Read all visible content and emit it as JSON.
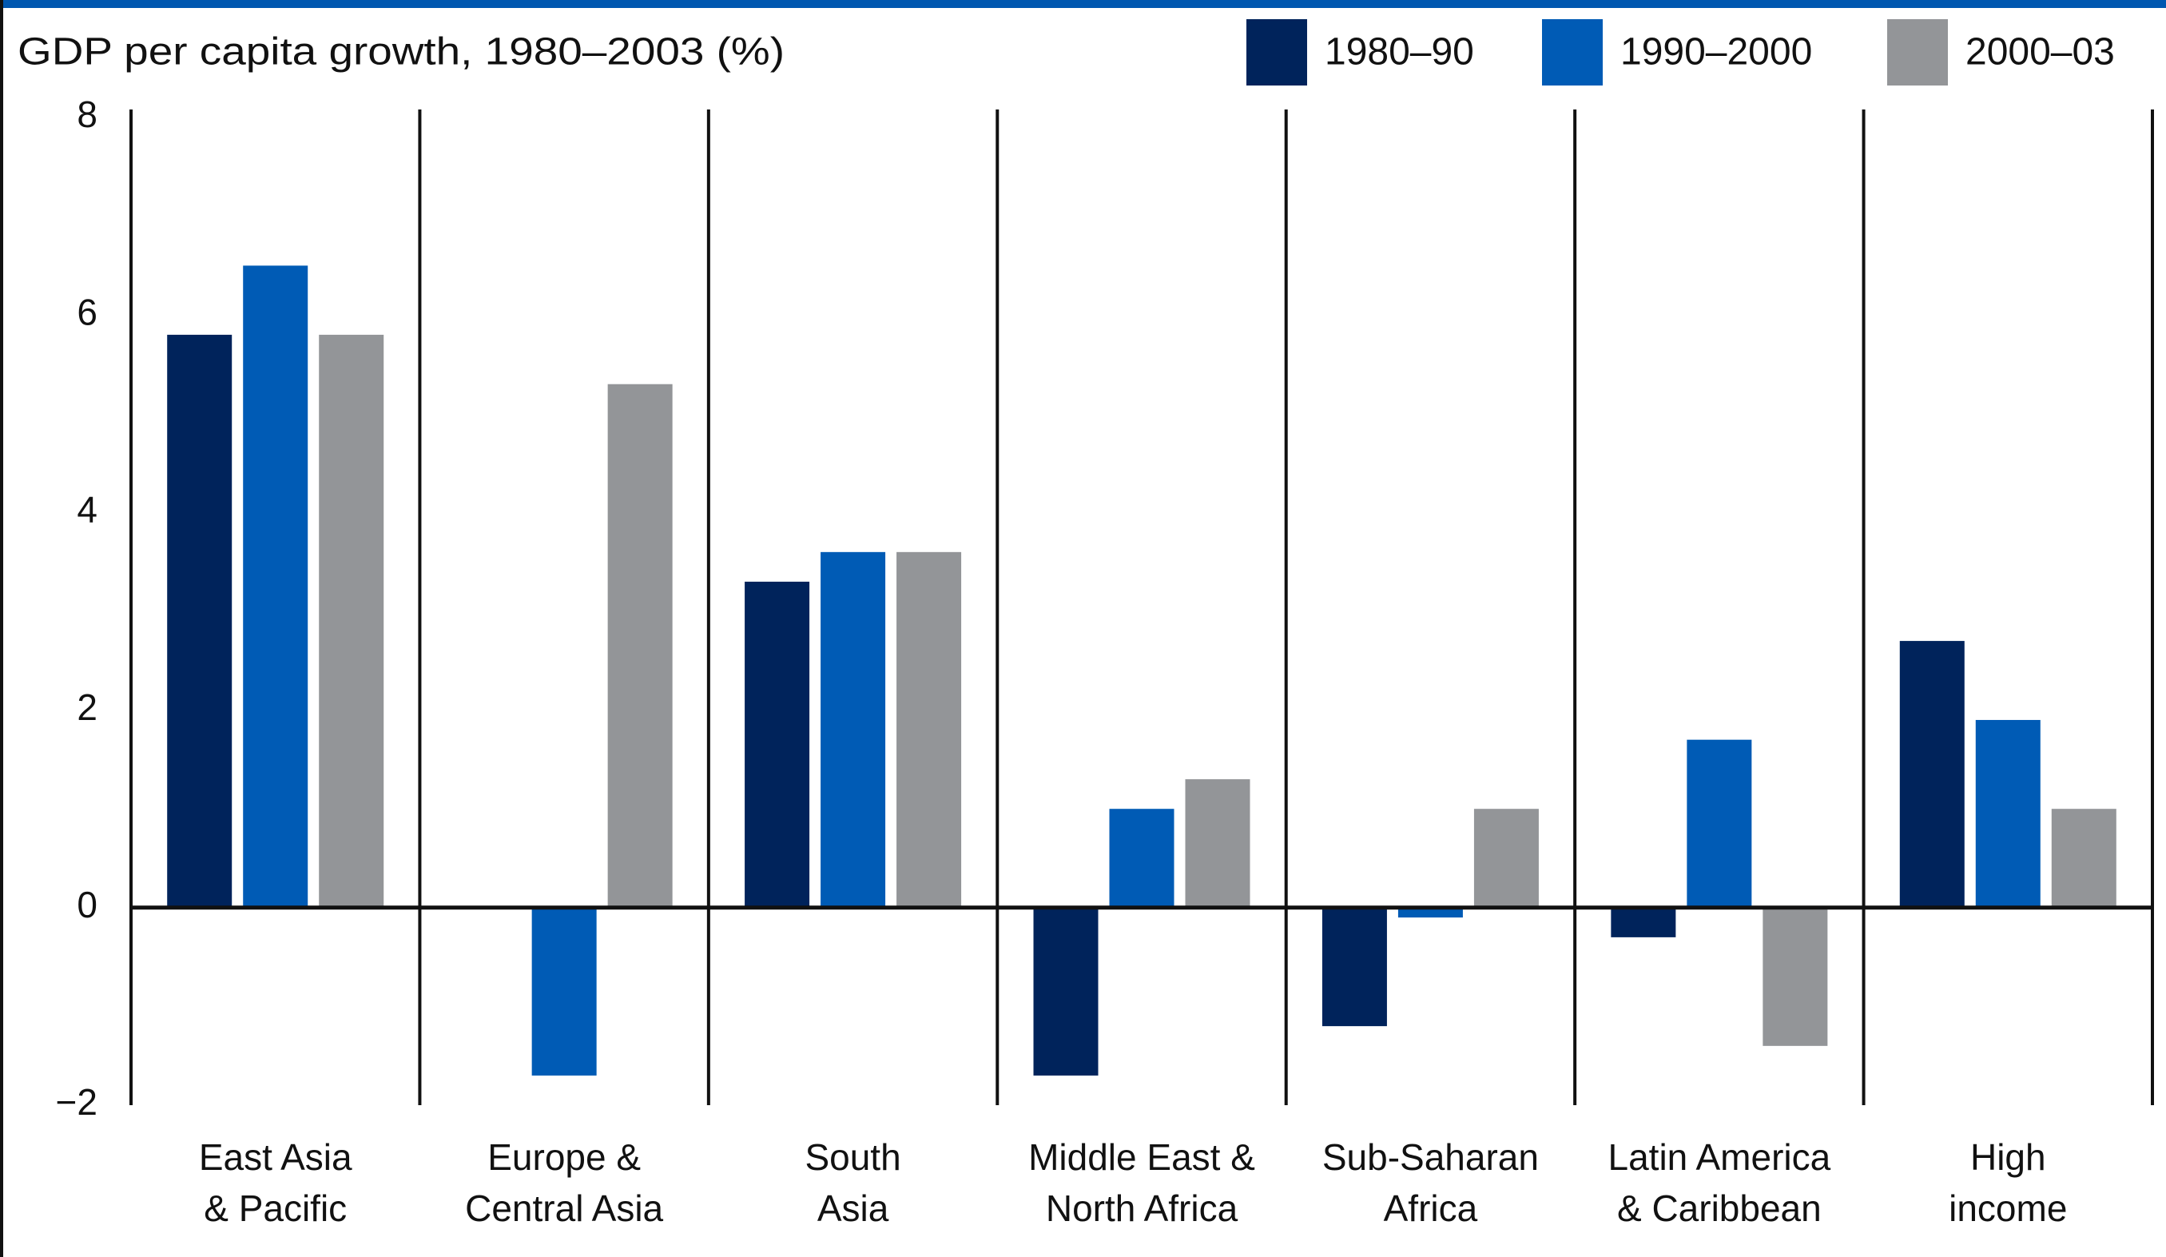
{
  "chart_data": {
    "type": "bar",
    "title": "GDP per capita growth, 1980–2003 (%)",
    "categories": [
      [
        "East Asia",
        "& Pacific"
      ],
      [
        "Europe &",
        "Central Asia"
      ],
      [
        "South",
        "Asia"
      ],
      [
        "Middle East &",
        "North Africa"
      ],
      [
        "Sub-Saharan",
        "Africa"
      ],
      [
        "Latin America",
        "& Caribbean"
      ],
      [
        "High",
        "income"
      ]
    ],
    "series": [
      {
        "name": "1980–90",
        "color": "#00235b",
        "values": [
          5.8,
          null,
          3.3,
          -1.7,
          -1.2,
          -0.3,
          2.7
        ]
      },
      {
        "name": "1990–2000",
        "color": "#005bb5",
        "values": [
          6.5,
          -1.7,
          3.6,
          1.0,
          -0.1,
          1.7,
          1.9
        ]
      },
      {
        "name": "2000–03",
        "color": "#939598",
        "values": [
          5.8,
          5.3,
          3.6,
          1.3,
          1.0,
          -1.4,
          1.0
        ]
      }
    ],
    "ylim": [
      -2,
      8
    ],
    "yticks": [
      {
        "value": -2,
        "label": "−2"
      },
      0,
      2,
      4,
      6,
      8
    ],
    "legend": "top-right",
    "grid": false
  }
}
